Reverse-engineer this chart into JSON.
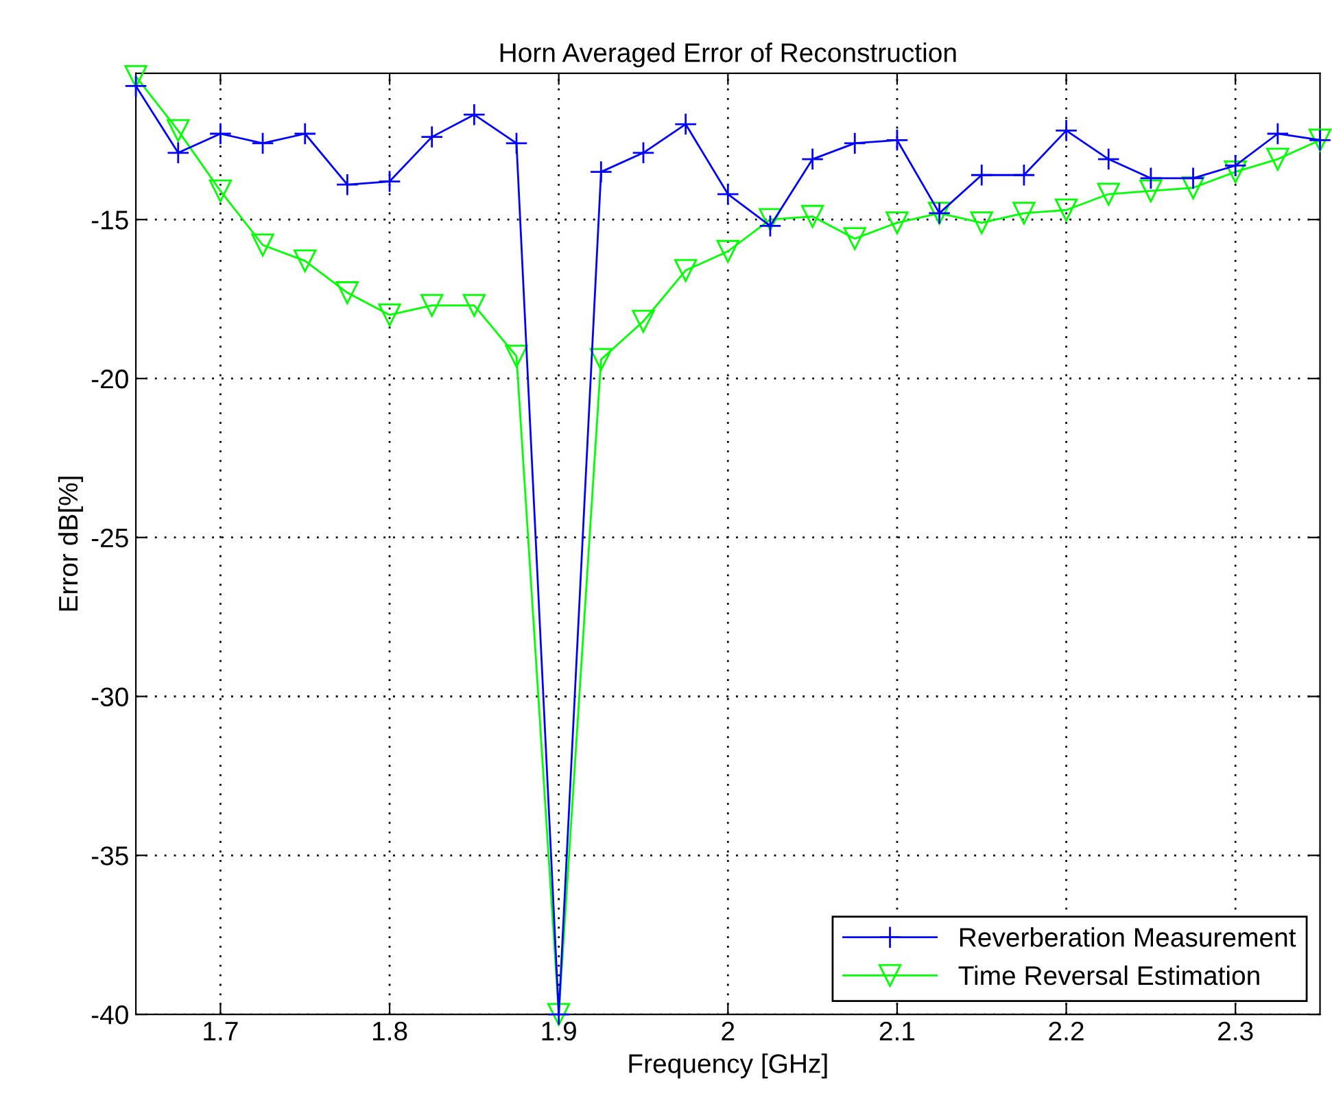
{
  "chart_data": {
    "type": "line",
    "title": "Horn Averaged Error of Reconstruction",
    "xlabel": "Frequency [GHz]",
    "ylabel": "Error dB[%]",
    "x": [
      1.65,
      1.675,
      1.7,
      1.725,
      1.75,
      1.775,
      1.8,
      1.825,
      1.85,
      1.875,
      1.9,
      1.925,
      1.95,
      1.975,
      2.0,
      2.025,
      2.05,
      2.075,
      2.1,
      2.125,
      2.15,
      2.175,
      2.2,
      2.225,
      2.25,
      2.275,
      2.3,
      2.325,
      2.35
    ],
    "series": [
      {
        "name": "Reverberation Measurement",
        "color": "#0000ff",
        "marker": "cross",
        "values": [
          -10.8,
          -12.9,
          -12.3,
          -12.6,
          -12.3,
          -13.9,
          -13.8,
          -12.4,
          -11.7,
          -12.6,
          -40,
          -13.5,
          -12.9,
          -12.0,
          -14.2,
          -15.2,
          -13.1,
          -12.6,
          -12.5,
          -14.8,
          -13.6,
          -13.6,
          -12.2,
          -13.1,
          -13.7,
          -13.7,
          -13.3,
          -12.3,
          -12.5
        ]
      },
      {
        "name": "Time Reversal Estimation",
        "color": "#00ff00",
        "marker": "triangle",
        "values": [
          -10.5,
          -12.2,
          -14.1,
          -15.8,
          -16.3,
          -17.3,
          -18.0,
          -17.7,
          -17.7,
          -19.3,
          -40,
          -19.4,
          -18.2,
          -16.6,
          -16.0,
          -15.0,
          -14.9,
          -15.6,
          -15.1,
          -14.8,
          -15.1,
          -14.8,
          -14.7,
          -14.2,
          -14.1,
          -14.0,
          -13.5,
          -13.1,
          -12.5
        ]
      }
    ],
    "xlim": [
      1.65,
      2.35
    ],
    "xticks": [
      1.7,
      1.8,
      1.9,
      2,
      2.1,
      2.2,
      2.3
    ],
    "ylim": [
      -40,
      -10.4
    ],
    "yticks": [
      -40,
      -35,
      -30,
      -25,
      -20,
      -15
    ],
    "grid": true,
    "legend": "bottom right",
    "line_style": "solid"
  }
}
